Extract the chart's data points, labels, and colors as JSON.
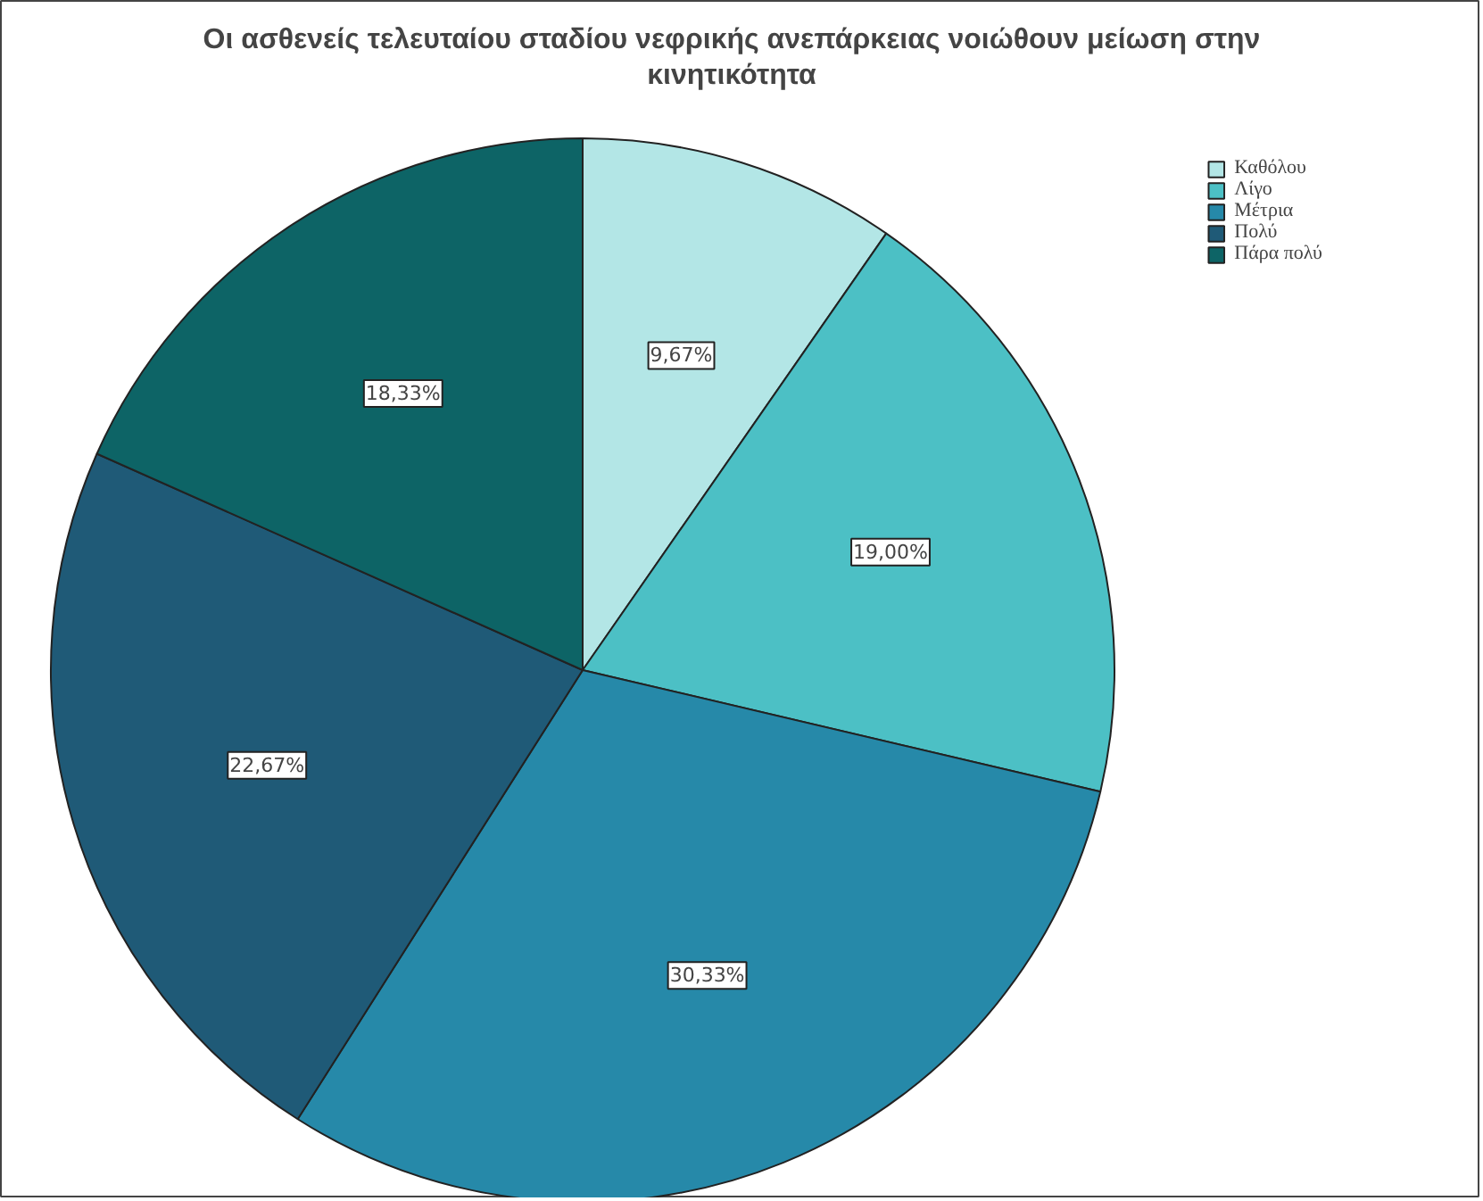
{
  "chart_data": {
    "type": "pie",
    "title": "Οι ασθενείς τελευταίου σταδίου νεφρικής ανεπάρκειας νοιώθουν μείωση στην κινητικότητα",
    "categories": [
      "Καθόλου",
      "Λίγο",
      "Μέτρια",
      "Πολύ",
      "Πάρα πολύ"
    ],
    "values": [
      9.67,
      19.0,
      30.33,
      22.67,
      18.33
    ],
    "value_labels": [
      "9,67%",
      "19,00%",
      "30,33%",
      "22,67%",
      "18,33%"
    ],
    "colors": [
      "#b3e6e6",
      "#4cc0c5",
      "#2689a9",
      "#1f5a77",
      "#0d6466"
    ],
    "legend": "top right"
  }
}
